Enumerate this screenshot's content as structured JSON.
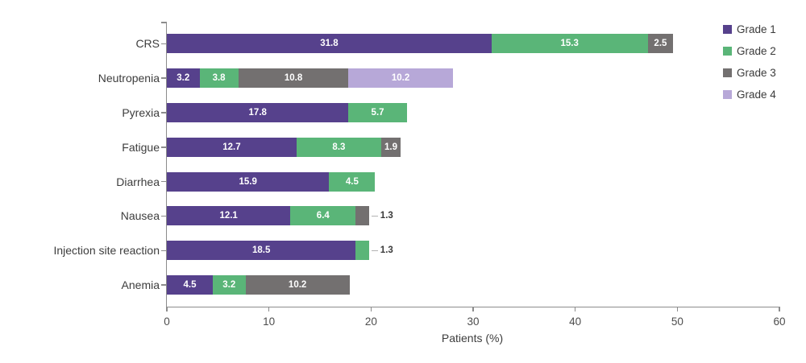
{
  "chart_data": {
    "type": "bar",
    "orientation": "horizontal",
    "stacked": true,
    "title": "",
    "xlabel": "Patients (%)",
    "ylabel": "",
    "xlim": [
      0,
      60
    ],
    "xticks": [
      0,
      10,
      20,
      30,
      40,
      50,
      60
    ],
    "grid": false,
    "legend_position": "top-right",
    "outside_label_threshold": 1.6,
    "categories": [
      "CRS",
      "Neutropenia",
      "Pyrexia",
      "Fatigue",
      "Diarrhea",
      "Nausea",
      "Injection site reaction",
      "Anemia"
    ],
    "series": [
      {
        "name": "Grade 1",
        "color": "#56418c",
        "values": [
          31.8,
          3.2,
          17.8,
          12.7,
          15.9,
          12.1,
          18.5,
          4.5
        ]
      },
      {
        "name": "Grade 2",
        "color": "#5ab578",
        "values": [
          15.3,
          3.8,
          5.7,
          8.3,
          4.5,
          6.4,
          1.3,
          3.2
        ]
      },
      {
        "name": "Grade 3",
        "color": "#737070",
        "values": [
          2.5,
          10.8,
          null,
          1.9,
          null,
          1.3,
          null,
          10.2
        ]
      },
      {
        "name": "Grade 4",
        "color": "#b7a8d8",
        "values": [
          null,
          10.2,
          null,
          null,
          null,
          null,
          null,
          null
        ]
      }
    ]
  },
  "colors": {
    "background": "#ffffff",
    "axis_line": "#8c8c8c",
    "tick_label_text": "#4d4d4d",
    "category_label_text": "#3d3d3d",
    "inside_value_label_text": "#ffffff",
    "outside_value_label_text": "#3a3a3a",
    "leader_line": "#b3b3b3",
    "legend_text": "#3b3b3b"
  }
}
